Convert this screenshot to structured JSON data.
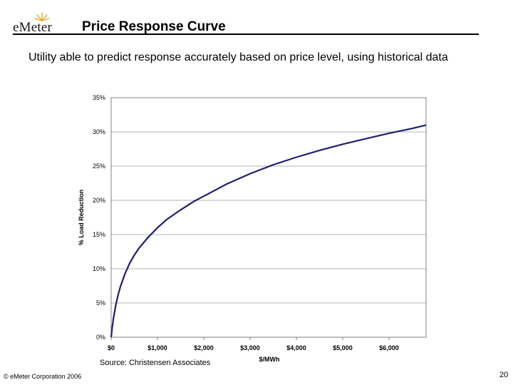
{
  "header": {
    "logo_text": "eMeter",
    "title": "Price Response Curve"
  },
  "subtitle": "Utility able to predict response accurately based on price level, using historical data",
  "chart_data": {
    "type": "line",
    "title": "",
    "xlabel": "$/MWh",
    "ylabel": "% Load Reduction",
    "xlim": [
      0,
      6800
    ],
    "ylim": [
      0,
      35
    ],
    "x_ticks": [
      0,
      1000,
      2000,
      3000,
      4000,
      5000,
      6000
    ],
    "x_tick_labels": [
      "$0",
      "$1,000",
      "$2,000",
      "$3,000",
      "$4,000",
      "$5,000",
      "$6,000"
    ],
    "y_ticks": [
      0,
      5,
      10,
      15,
      20,
      25,
      30,
      35
    ],
    "y_tick_labels": [
      "0%",
      "5%",
      "10%",
      "15%",
      "20%",
      "25%",
      "30%",
      "35%"
    ],
    "grid": true,
    "series": [
      {
        "color": "#1f1f6e",
        "x": [
          0,
          25,
          50,
          100,
          150,
          200,
          300,
          400,
          500,
          600,
          800,
          1000,
          1200,
          1500,
          1800,
          2000,
          2500,
          3000,
          3500,
          4000,
          4500,
          5000,
          5500,
          6000,
          6500,
          6800
        ],
        "y": [
          0,
          1.5,
          2.8,
          4.7,
          6.2,
          7.4,
          9.3,
          10.8,
          12.0,
          13.0,
          14.6,
          16.0,
          17.2,
          18.6,
          19.9,
          20.6,
          22.4,
          23.9,
          25.2,
          26.3,
          27.3,
          28.2,
          29.0,
          29.8,
          30.5,
          31.0
        ]
      }
    ]
  },
  "source": "Source: Christensen Associates",
  "footer": {
    "copyright": "© eMeter Corporation 2006",
    "page_number": "20"
  }
}
